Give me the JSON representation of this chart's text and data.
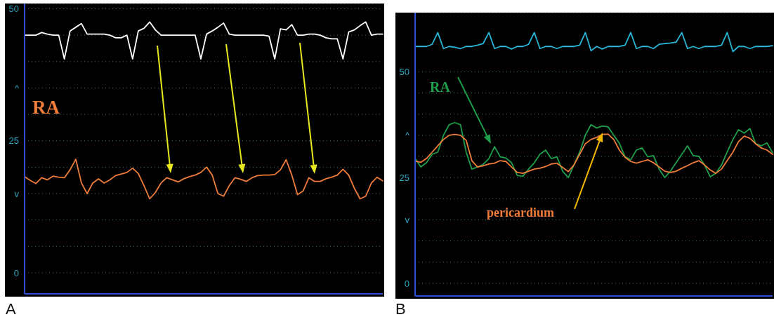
{
  "chart_data": [
    {
      "type": "line",
      "annotations": [
        "A"
      ],
      "grid": "y",
      "marker": "none",
      "line_style": "solid",
      "categories": [
        null,
        null,
        null,
        null,
        null,
        null,
        null,
        null,
        null,
        null,
        null,
        null,
        null,
        null,
        null,
        null,
        null,
        null,
        null,
        null,
        null,
        null,
        null,
        null,
        null,
        null,
        null,
        null,
        null,
        null,
        null,
        null,
        null,
        null,
        null,
        null,
        null,
        null,
        null,
        null,
        null,
        null,
        null,
        null,
        null,
        null,
        null,
        null,
        null,
        null,
        null,
        null,
        null,
        null,
        null,
        null,
        null,
        null,
        null,
        null,
        null,
        null,
        null,
        null
      ],
      "series": [
        {
          "color": "#ffffff",
          "values": [
            45,
            45,
            45,
            45.5,
            45.2,
            45,
            45,
            40.5,
            45.8,
            46.5,
            47.2,
            45.2,
            45.2,
            45.2,
            45.2,
            45,
            44.5,
            44.5,
            45,
            40.5,
            45.8,
            46.3,
            47.5,
            46,
            45,
            45,
            45,
            45,
            45,
            45,
            45,
            40.5,
            45.2,
            45.8,
            46.5,
            47.3,
            45.2,
            45,
            45,
            45,
            45,
            45,
            45,
            44.8,
            40.5,
            46.2,
            46,
            47,
            45,
            45,
            45.2,
            45.2,
            45,
            44.5,
            44.3,
            44.3,
            40.5,
            45.6,
            46,
            46.8,
            47.5,
            45,
            45.2,
            45.2
          ]
        },
        {
          "name": "RA",
          "color": "#f07c3a",
          "values": [
            18.2,
            17.5,
            16.9,
            18,
            17.6,
            18.3,
            18.1,
            18,
            19.5,
            21.5,
            17,
            15,
            17,
            17.8,
            17,
            17.6,
            18.4,
            18.7,
            19,
            19.8,
            18.8,
            16.5,
            14,
            15.2,
            17,
            18,
            17.6,
            17.2,
            17.8,
            18.2,
            18.5,
            19,
            20,
            18.5,
            15,
            14.5,
            16.5,
            18,
            17.7,
            17.3,
            18,
            18.4,
            18.5,
            18.5,
            18.6,
            19.5,
            21.4,
            18.5,
            14.8,
            15.5,
            18,
            17.3,
            17.3,
            17.8,
            18.1,
            18.5,
            19.6,
            18.5,
            16,
            14,
            14.5,
            17,
            18.1,
            17.4
          ]
        }
      ],
      "ylim": [
        -4,
        51
      ],
      "yticks": [
        0,
        {
          "value": 5,
          "label": null
        },
        {
          "value": 10,
          "label": null
        },
        {
          "value": 15,
          "label": "v"
        },
        {
          "value": 20,
          "label": null
        },
        25,
        {
          "value": 30,
          "label": null
        },
        {
          "value": 35,
          "label": "^"
        },
        {
          "value": 40,
          "label": null
        },
        {
          "value": 45,
          "label": null
        },
        50
      ]
    },
    {
      "type": "line",
      "annotations": [
        "B"
      ],
      "grid": "y",
      "marker": "none",
      "line_style": "solid",
      "categories": [
        null,
        null,
        null,
        null,
        null,
        null,
        null,
        null,
        null,
        null,
        null,
        null,
        null,
        null,
        null,
        null,
        null,
        null,
        null,
        null,
        null,
        null,
        null,
        null,
        null,
        null,
        null,
        null,
        null,
        null,
        null,
        null,
        null,
        null,
        null,
        null,
        null,
        null,
        null,
        null,
        null,
        null,
        null,
        null,
        null,
        null,
        null,
        null,
        null,
        null,
        null,
        null,
        null,
        null,
        null,
        null,
        null,
        null,
        null,
        null,
        null,
        null,
        null,
        null
      ],
      "series": [
        {
          "color": "#29b6d6",
          "values": [
            56,
            56,
            56,
            56.5,
            59.3,
            55.5,
            56,
            55.8,
            55.5,
            56,
            56,
            56.3,
            56.7,
            59.3,
            55.5,
            56,
            56,
            55.4,
            56,
            56,
            56.5,
            59.3,
            55.5,
            56,
            56,
            55.5,
            56,
            56,
            56,
            56.3,
            59.3,
            55,
            56,
            55.4,
            56,
            56,
            56,
            56.3,
            59.3,
            55.5,
            56,
            56,
            55.5,
            56.5,
            56.7,
            56.8,
            57,
            59.3,
            55.5,
            56,
            55.5,
            56,
            56,
            56,
            56.3,
            59.3,
            54.8,
            56,
            56,
            55.5,
            56,
            56,
            56,
            56.2
          ]
        },
        {
          "name": "RA",
          "color": "#1e9e4a",
          "values": [
            29.5,
            27.5,
            28.5,
            30.5,
            31,
            35,
            37.5,
            38,
            37.5,
            31,
            27,
            27.5,
            28.1,
            29.5,
            32.3,
            29.9,
            29.6,
            28.5,
            25.5,
            25.3,
            27,
            28.5,
            30.5,
            31.5,
            29.5,
            29.9,
            26.5,
            25,
            28,
            31,
            35,
            37.5,
            36.7,
            37.2,
            37,
            35,
            33.1,
            29.9,
            29.2,
            31.5,
            32,
            29.9,
            30.2,
            27,
            25,
            26.5,
            28.5,
            30.5,
            32.5,
            30.2,
            30,
            28,
            25.2,
            26,
            28,
            31,
            34,
            36.3,
            35.5,
            36.6,
            33,
            32.5,
            33.2,
            30.9
          ]
        },
        {
          "name": "pericardium",
          "color": "#f07c3a",
          "values": [
            28.9,
            28.6,
            29.5,
            31,
            32.5,
            34,
            35,
            35.2,
            35,
            33.8,
            29,
            27.5,
            27.8,
            28.2,
            28.4,
            29,
            28.8,
            27.5,
            26.2,
            26,
            26.5,
            27,
            27.2,
            27.6,
            28.2,
            28.4,
            27.4,
            26.4,
            28,
            30.5,
            33,
            34,
            34.5,
            35.2,
            35.3,
            34,
            31.5,
            29.8,
            28.8,
            28.4,
            28.8,
            29.2,
            28.5,
            27.5,
            26.5,
            26.2,
            26.5,
            27.2,
            27.8,
            28.5,
            29,
            28,
            26.8,
            26,
            27,
            29,
            31,
            33.5,
            34.8,
            34.3,
            33,
            32,
            31.5,
            30.5
          ]
        }
      ],
      "ylim": [
        -3,
        64
      ],
      "yticks": [
        0,
        {
          "value": 5,
          "label": null
        },
        {
          "value": 10,
          "label": null
        },
        {
          "value": 15,
          "label": "v"
        },
        {
          "value": 20,
          "label": null
        },
        25,
        {
          "value": 30,
          "label": null
        },
        {
          "value": 35,
          "label": "^"
        },
        {
          "value": 40,
          "label": null
        },
        {
          "value": 45,
          "label": null
        },
        50
      ]
    }
  ]
}
